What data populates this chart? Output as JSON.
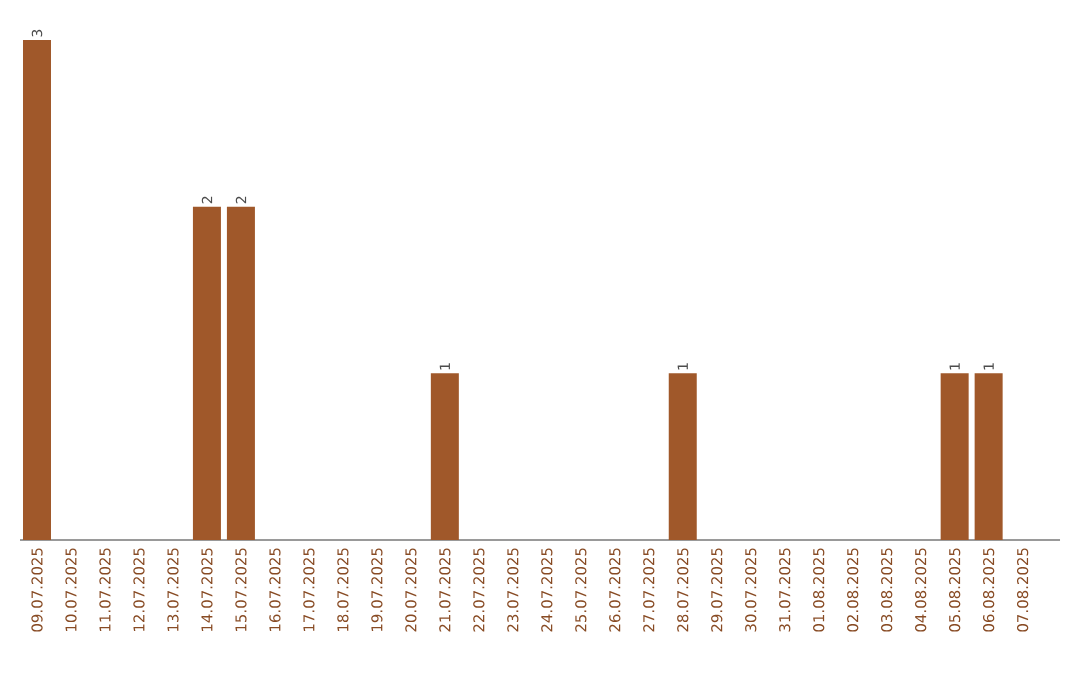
{
  "chart_data": {
    "type": "bar",
    "categories": [
      "09.07.2025",
      "10.07.2025",
      "11.07.2025",
      "12.07.2025",
      "13.07.2025",
      "14.07.2025",
      "15.07.2025",
      "16.07.2025",
      "17.07.2025",
      "18.07.2025",
      "19.07.2025",
      "20.07.2025",
      "21.07.2025",
      "22.07.2025",
      "23.07.2025",
      "24.07.2025",
      "25.07.2025",
      "26.07.2025",
      "27.07.2025",
      "28.07.2025",
      "29.07.2025",
      "30.07.2025",
      "31.07.2025",
      "01.08.2025",
      "02.08.2025",
      "03.08.2025",
      "04.08.2025",
      "05.08.2025",
      "06.08.2025",
      "07.08.2025"
    ],
    "values": [
      3,
      0,
      0,
      0,
      0,
      2,
      2,
      0,
      0,
      0,
      0,
      0,
      1,
      0,
      0,
      0,
      0,
      0,
      0,
      1,
      0,
      0,
      0,
      0,
      0,
      0,
      0,
      1,
      1,
      0
    ],
    "value_labels": [
      "3",
      null,
      null,
      null,
      null,
      "2",
      "2",
      null,
      null,
      null,
      null,
      null,
      "1",
      null,
      null,
      null,
      null,
      null,
      null,
      "1",
      null,
      null,
      null,
      null,
      null,
      null,
      null,
      "1",
      "1",
      null
    ],
    "color": "#a0582a"
  }
}
